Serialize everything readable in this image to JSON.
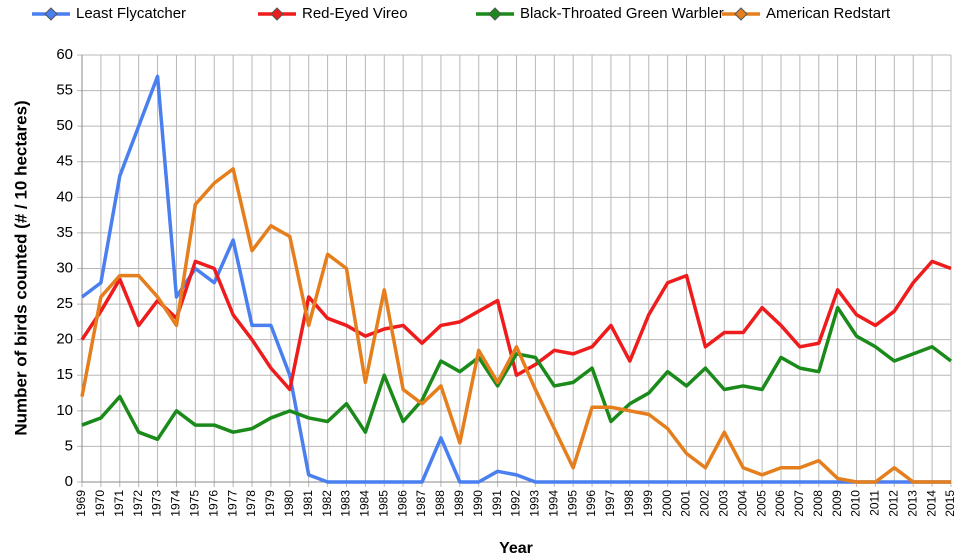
{
  "chart_data": {
    "type": "line",
    "x_label": "Year",
    "y_label": "Number of birds counted (# / 10 hectares)",
    "x": [
      1969,
      1970,
      1971,
      1972,
      1973,
      1974,
      1975,
      1976,
      1977,
      1978,
      1979,
      1980,
      1981,
      1982,
      1983,
      1984,
      1985,
      1986,
      1987,
      1988,
      1989,
      1990,
      1991,
      1992,
      1993,
      1994,
      1995,
      1996,
      1997,
      1998,
      1999,
      2000,
      2001,
      2002,
      2003,
      2004,
      2005,
      2006,
      2007,
      2008,
      2009,
      2010,
      2011,
      2012,
      2013,
      2014,
      2015
    ],
    "xlim": [
      1969,
      2015
    ],
    "ylim": [
      0,
      60
    ],
    "yticks": [
      0,
      5,
      10,
      15,
      20,
      25,
      30,
      35,
      40,
      45,
      50,
      55,
      60
    ],
    "grid": true,
    "legend": "top",
    "series": [
      {
        "name": "Least Flycatcher",
        "color": "#4a7ff0",
        "values": [
          26,
          28,
          43,
          50,
          57,
          26,
          30,
          28,
          34,
          22,
          22,
          15,
          1,
          0,
          0,
          0,
          0,
          0,
          0,
          6.2,
          0,
          0,
          1.5,
          1,
          0,
          0,
          0,
          0,
          0,
          0,
          0,
          0,
          0,
          0,
          0,
          0,
          0,
          0,
          0,
          0,
          0,
          0,
          0,
          0,
          0,
          0,
          0
        ]
      },
      {
        "name": "Red-Eyed Vireo",
        "color": "#ee1c1c",
        "values": [
          20,
          24,
          28.5,
          22,
          25.5,
          23,
          31,
          30,
          23.5,
          20,
          16,
          13,
          26,
          23,
          22,
          20.5,
          21.5,
          22,
          19.5,
          22,
          22.5,
          24,
          25.5,
          15,
          16.5,
          18.5,
          18,
          19,
          22,
          17,
          23.5,
          28,
          29,
          19,
          21,
          21,
          24.5,
          22,
          19,
          19.5,
          27,
          23.5,
          22,
          24,
          28,
          31,
          30
        ]
      },
      {
        "name": "Black-Throated Green Warbler",
        "color": "#1a8a1a",
        "values": [
          8,
          9,
          12,
          7,
          6,
          10,
          8,
          8,
          7,
          7.5,
          9,
          10,
          9,
          8.5,
          11,
          7,
          15,
          8.5,
          11.5,
          17,
          15.5,
          17.5,
          13.5,
          18,
          17.5,
          13.5,
          14,
          16,
          8.5,
          11,
          12.5,
          15.5,
          13.5,
          16,
          13,
          13.5,
          13,
          17.5,
          16,
          15.5,
          24.5,
          20.5,
          19,
          17,
          18,
          19,
          17
        ]
      },
      {
        "name": "American Redstart",
        "color": "#e57e1c",
        "values": [
          12,
          26,
          29,
          29,
          26,
          22,
          39,
          42,
          44,
          32.5,
          36,
          34.5,
          22,
          32,
          30,
          14,
          27,
          13,
          11,
          13.5,
          5.5,
          18.5,
          14,
          19,
          13,
          7.5,
          2,
          10.5,
          10.5,
          10,
          9.5,
          7.5,
          4,
          2,
          7,
          2,
          1,
          2,
          2,
          3,
          0.5,
          0,
          0,
          2,
          0,
          0,
          0
        ]
      }
    ]
  }
}
